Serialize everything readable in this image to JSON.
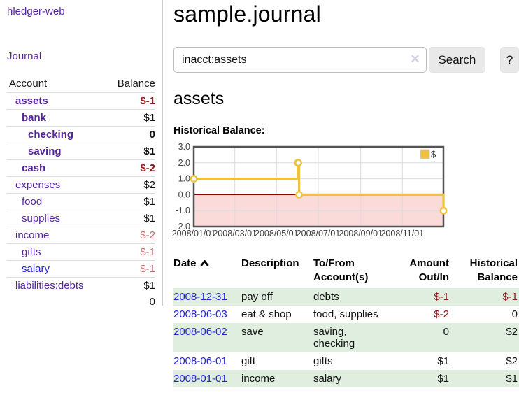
{
  "sidebar": {
    "brand": "hledger-web",
    "journal_label": "Journal",
    "table": {
      "account_header": "Account",
      "balance_header": "Balance",
      "rows": [
        {
          "account": "assets",
          "indent": 1,
          "bold": true,
          "link_color": "purple",
          "balance": "$-1",
          "balance_style": "neg-strong"
        },
        {
          "account": "bank",
          "indent": 2,
          "bold": true,
          "link_color": "purple",
          "balance": "$1",
          "balance_style": "pos"
        },
        {
          "account": "checking",
          "indent": 3,
          "bold": true,
          "link_color": "purple",
          "balance": "0",
          "balance_style": "pos"
        },
        {
          "account": "saving",
          "indent": 3,
          "bold": true,
          "link_color": "purple",
          "balance": "$1",
          "balance_style": "pos"
        },
        {
          "account": "cash",
          "indent": 2,
          "bold": true,
          "link_color": "purple",
          "balance": "$-2",
          "balance_style": "neg-strong"
        },
        {
          "account": "expenses",
          "indent": 1,
          "bold": false,
          "link_color": "purple",
          "balance": "$2",
          "balance_style": "pos"
        },
        {
          "account": "food",
          "indent": 2,
          "bold": false,
          "link_color": "purple",
          "balance": "$1",
          "balance_style": "pos"
        },
        {
          "account": "supplies",
          "indent": 2,
          "bold": false,
          "link_color": "purple",
          "balance": "$1",
          "balance_style": "pos"
        },
        {
          "account": "income",
          "indent": 1,
          "bold": false,
          "link_color": "purple",
          "balance": "$-2",
          "balance_style": "neg-weak"
        },
        {
          "account": "gifts",
          "indent": 2,
          "bold": false,
          "link_color": "purple",
          "balance": "$-1",
          "balance_style": "neg-weak"
        },
        {
          "account": "salary",
          "indent": 2,
          "bold": false,
          "link_color": "blue",
          "balance": "$-1",
          "balance_style": "neg-weak"
        },
        {
          "account": "liabilities:debts",
          "indent": 1,
          "bold": false,
          "link_color": "purple",
          "balance": "$1",
          "balance_style": "pos"
        }
      ],
      "total": "0"
    }
  },
  "header": {
    "title": "sample.journal"
  },
  "search": {
    "query": "inacct:assets",
    "clear_icon": "✕",
    "search_label": "Search",
    "help_label": "?"
  },
  "account_page": {
    "heading": "assets",
    "chart_label": "Historical Balance:"
  },
  "chart_data": {
    "type": "line",
    "step": true,
    "title": "Historical Balance",
    "series": [
      {
        "name": "$",
        "color": "#EDC240",
        "points": [
          [
            "2008-01-01",
            1
          ],
          [
            "2008-06-01",
            2
          ],
          [
            "2008-06-02",
            2
          ],
          [
            "2008-06-03",
            0
          ],
          [
            "2008-12-31",
            -1
          ]
        ]
      }
    ],
    "xlim": [
      "2008-01-01",
      "2008-12-31"
    ],
    "ylim": [
      -2,
      3
    ],
    "yticks": [
      {
        "label": "3.0",
        "value": 3
      },
      {
        "label": "2.0",
        "value": 2
      },
      {
        "label": "1.0",
        "value": 1
      },
      {
        "label": "0.0",
        "value": 0
      },
      {
        "label": "-1.0",
        "value": -1
      },
      {
        "label": "-2.0",
        "value": -2
      }
    ],
    "xticks": [
      {
        "label": "2008/01/01",
        "date": "2008-01-01"
      },
      {
        "label": "2008/03/01",
        "date": "2008-03-01"
      },
      {
        "label": "2008/05/01",
        "date": "2008-05-01"
      },
      {
        "label": "2008/07/01",
        "date": "2008-07-01"
      },
      {
        "label": "2008/09/01",
        "date": "2008-09-01"
      },
      {
        "label": "2008/11/01",
        "date": "2008-11-01"
      }
    ],
    "grid": true,
    "grid_color": "#dcdcdc",
    "border_color": "#545454",
    "tick_text_color": "#3d3d3d",
    "zero_line_color": "#8b0000",
    "negative_fill": "#fbdada",
    "legend": {
      "label": "$",
      "position": "top-right",
      "box_color": "#EDC240"
    }
  },
  "register": {
    "columns": [
      {
        "label": "Date",
        "sort": "ascending"
      },
      {
        "label": "Description"
      },
      {
        "label": "To/From Account(s)"
      },
      {
        "label": "Amount Out/In",
        "align": "right"
      },
      {
        "label": "Historical Balance",
        "align": "right"
      }
    ],
    "rows": [
      {
        "date": "2008-12-31",
        "description": "pay off",
        "accounts": "debts",
        "amount": "$-1",
        "amount_negative": true,
        "balance": "$-1",
        "balance_negative": true
      },
      {
        "date": "2008-06-03",
        "description": "eat & shop",
        "accounts": "food, supplies",
        "amount": "$-2",
        "amount_negative": true,
        "balance": "0",
        "balance_negative": false
      },
      {
        "date": "2008-06-02",
        "description": "save",
        "accounts": "saving, checking",
        "amount": "0",
        "amount_negative": false,
        "balance": "$2",
        "balance_negative": false
      },
      {
        "date": "2008-06-01",
        "description": "gift",
        "accounts": "gifts",
        "amount": "$1",
        "amount_negative": false,
        "balance": "$2",
        "balance_negative": false
      },
      {
        "date": "2008-01-01",
        "description": "income",
        "accounts": "salary",
        "amount": "$1",
        "amount_negative": false,
        "balance": "$1",
        "balance_negative": false
      }
    ]
  }
}
